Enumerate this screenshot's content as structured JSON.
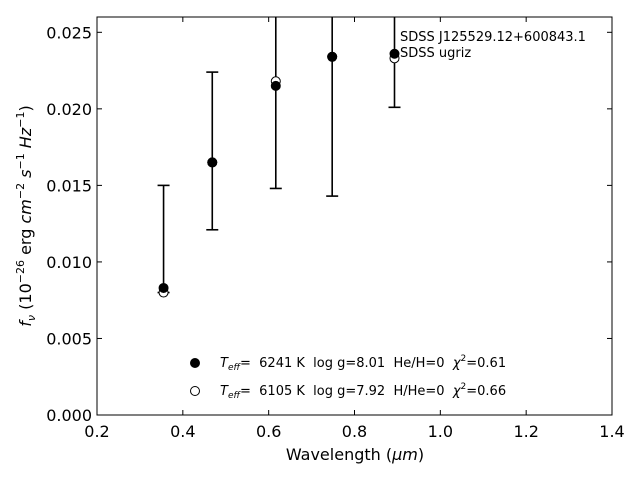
{
  "chart_data": {
    "type": "scatter",
    "xlabel_main": "Wavelength (",
    "xlabel_unit": "μm",
    "xlabel_close": ")",
    "ylabel_f": "f",
    "ylabel_nu": "ν",
    "ylabel_open": " (10",
    "ylabel_exp": "−26",
    "ylabel_erg": " erg ",
    "ylabel_cm": "cm",
    "ylabel_cm_exp": "−2",
    "ylabel_s": " s",
    "ylabel_s_exp": "−1",
    "ylabel_hz": " Hz",
    "ylabel_hz_exp": "−1",
    "ylabel_close": ")",
    "xlim": [
      0.2,
      1.4
    ],
    "ylim": [
      0.0,
      0.026
    ],
    "xticks": [
      0.2,
      0.4,
      0.6,
      0.8,
      1.0,
      1.2,
      1.4
    ],
    "xtick_labels": [
      "0.2",
      "0.4",
      "0.6",
      "0.8",
      "1.0",
      "1.2",
      "1.4"
    ],
    "yticks": [
      0.0,
      0.005,
      0.01,
      0.015,
      0.02,
      0.025
    ],
    "ytick_labels": [
      "0.000",
      "0.005",
      "0.010",
      "0.015",
      "0.020",
      "0.025"
    ],
    "annotation_line1": "SDSS J125529.12+600843.1",
    "annotation_line2": "SDSS ugriz",
    "observed": {
      "x": [
        0.3551,
        0.4686,
        0.6166,
        0.748,
        0.8932
      ],
      "y": [
        0.0083,
        0.0166,
        0.0215,
        0.0234,
        0.0236
      ],
      "err_low": [
        0.008,
        0.0121,
        0.0148,
        0.0143,
        0.0201
      ],
      "err_high": [
        0.015,
        0.0224,
        0.026,
        0.026,
        0.026
      ]
    },
    "series": [
      {
        "name": "He/H=0",
        "marker": "filled-circle",
        "teff_label": "T",
        "teff_sub": "eff",
        "eq": "=  6241 K  log g=8.01  He/H=0  ",
        "chi": "χ",
        "chi_exp": "2",
        "chi_val": "=0.61",
        "x": [
          0.3551,
          0.4686,
          0.6166,
          0.748,
          0.8932
        ],
        "y": [
          0.0083,
          0.0165,
          0.0215,
          0.0234,
          0.0236
        ]
      },
      {
        "name": "H/He=0",
        "marker": "open-circle",
        "teff_label": "T",
        "teff_sub": "eff",
        "eq": "=  6105 K  log g=7.92  H/He=0  ",
        "chi": "χ",
        "chi_exp": "2",
        "chi_val": "=0.66",
        "x": [
          0.3551,
          0.4686,
          0.6166,
          0.748,
          0.8932
        ],
        "y": [
          0.008,
          0.0165,
          0.0218,
          0.0234,
          0.0233
        ]
      }
    ],
    "legend_position": "lower-center",
    "grid": false
  }
}
